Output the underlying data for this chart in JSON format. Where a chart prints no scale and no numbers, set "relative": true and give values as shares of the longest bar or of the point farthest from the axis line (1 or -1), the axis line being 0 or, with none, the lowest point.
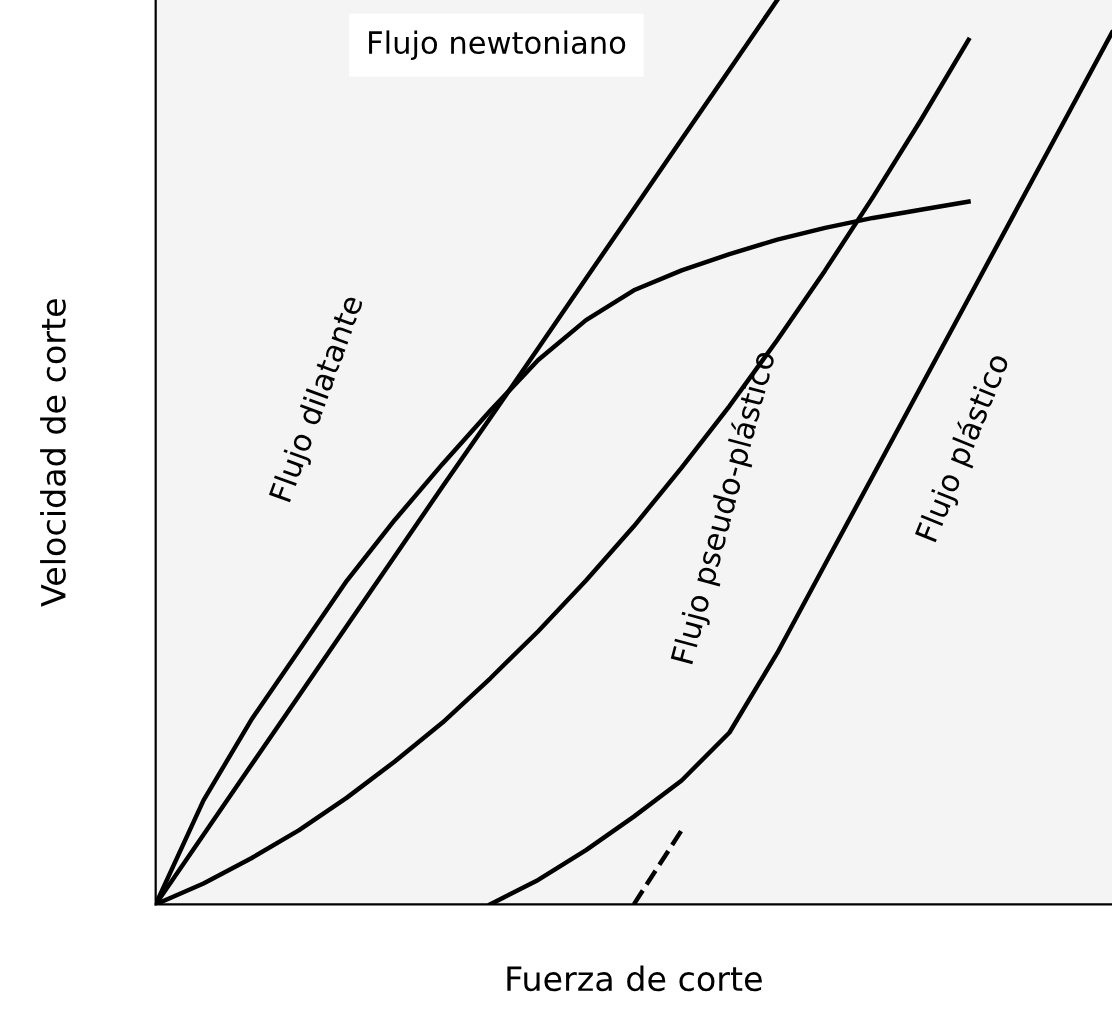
{
  "chart_data": {
    "type": "line",
    "relative": true,
    "xlabel": "Fuerza de corte",
    "ylabel": "Velocidad de corte",
    "legend": false,
    "marker": "none",
    "categories": [
      null,
      null,
      null,
      null,
      null,
      null,
      null,
      null,
      null,
      null,
      null,
      null,
      null,
      null,
      null,
      null,
      null,
      null,
      null,
      null,
      null
    ],
    "series": [
      {
        "name": "Flujo newtoniano",
        "color": "#000000",
        "values": [
          0,
          0.077,
          0.154,
          0.231,
          0.308,
          0.385,
          0.462,
          0.538,
          0.615,
          0.692,
          0.769,
          0.846,
          0.923,
          1.0,
          null,
          null,
          null,
          null,
          null,
          null,
          null
        ]
      },
      {
        "name": "Flujo dilatante",
        "color": "#000000",
        "values": [
          0,
          0.115,
          0.204,
          0.281,
          0.358,
          0.425,
          0.487,
          0.546,
          0.602,
          0.646,
          0.679,
          0.701,
          0.719,
          0.735,
          0.748,
          0.759,
          0.768,
          0.777,
          null,
          null,
          null
        ]
      },
      {
        "name": "Flujo pseudo-plástico",
        "color": "#000000",
        "values": [
          0,
          0.023,
          0.051,
          0.082,
          0.118,
          0.158,
          0.201,
          0.25,
          0.302,
          0.358,
          0.418,
          0.483,
          0.551,
          0.624,
          0.701,
          0.782,
          0.867,
          0.956,
          null,
          null,
          null
        ]
      },
      {
        "name": "Flujo plástico",
        "color": "#000000",
        "values": [
          null,
          null,
          null,
          null,
          null,
          null,
          null,
          0,
          0.027,
          0.06,
          0.097,
          0.137,
          0.19,
          0.278,
          0.376,
          0.474,
          0.572,
          0.67,
          0.768,
          0.866,
          0.964
        ]
      },
      {
        "color": "#000000",
        "line_style": "dashed",
        "values": [
          null,
          null,
          null,
          null,
          null,
          null,
          null,
          null,
          null,
          null,
          0,
          0.082,
          null,
          null,
          null,
          null,
          null,
          null,
          null,
          null,
          null
        ]
      }
    ]
  }
}
